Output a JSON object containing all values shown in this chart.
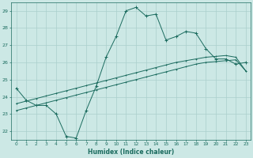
{
  "xlabel": "Humidex (Indice chaleur)",
  "x": [
    0,
    1,
    2,
    3,
    4,
    5,
    6,
    7,
    8,
    9,
    10,
    11,
    12,
    13,
    14,
    15,
    16,
    17,
    18,
    19,
    20,
    21,
    22,
    23
  ],
  "y_main": [
    24.5,
    23.8,
    23.5,
    23.5,
    23.0,
    21.7,
    21.6,
    23.2,
    24.6,
    26.3,
    27.5,
    29.0,
    29.2,
    28.7,
    28.8,
    27.3,
    27.5,
    27.8,
    27.7,
    26.8,
    26.2,
    26.2,
    25.9,
    26.0
  ],
  "y_line1": [
    23.2,
    23.35,
    23.5,
    23.65,
    23.8,
    23.95,
    24.1,
    24.25,
    24.4,
    24.55,
    24.7,
    24.85,
    25.0,
    25.15,
    25.3,
    25.45,
    25.6,
    25.75,
    25.9,
    26.0,
    26.05,
    26.1,
    26.15,
    25.5
  ],
  "y_line2": [
    23.6,
    23.75,
    23.9,
    24.05,
    24.2,
    24.35,
    24.5,
    24.65,
    24.8,
    24.95,
    25.1,
    25.25,
    25.4,
    25.55,
    25.7,
    25.85,
    26.0,
    26.1,
    26.2,
    26.3,
    26.35,
    26.4,
    26.3,
    25.5
  ],
  "line_color": "#1a6b5e",
  "bg_color": "#cce8e5",
  "grid_color": "#aacfcc",
  "tick_color": "#1a6b5e",
  "ylim": [
    21.5,
    29.5
  ],
  "yticks": [
    22,
    23,
    24,
    25,
    26,
    27,
    28,
    29
  ],
  "xlim": [
    -0.5,
    23.5
  ]
}
